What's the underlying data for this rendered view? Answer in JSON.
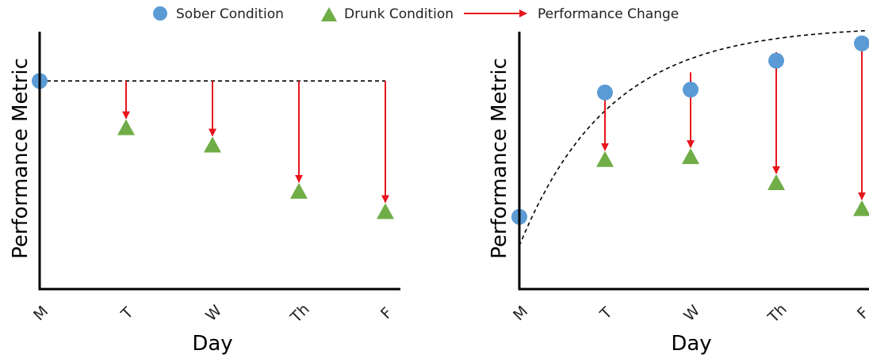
{
  "legend": {
    "sober_label": "Sober Condition",
    "drunk_label": "Drunk Condition",
    "change_label": "Performance Change"
  },
  "colors": {
    "sober": "#5b9bd5",
    "drunk": "#70ad47",
    "change": "#e8141c",
    "axis": "#000000",
    "guide": "#000000"
  },
  "chart_data": [
    {
      "type": "scatter",
      "xlabel": "Day",
      "ylabel": "Performance Metric",
      "categories": [
        "M",
        "T",
        "W",
        "Th",
        "F"
      ],
      "ylim": [
        0,
        100
      ],
      "guide": "flat",
      "series": [
        {
          "name": "Sober Condition",
          "values": [
            72,
            null,
            null,
            null,
            null
          ]
        },
        {
          "name": "Drunk Condition",
          "values": [
            null,
            56,
            50,
            34,
            27
          ]
        }
      ],
      "changes": [
        {
          "x": "T",
          "from": 72,
          "to": 56
        },
        {
          "x": "W",
          "from": 72,
          "to": 50
        },
        {
          "x": "Th",
          "from": 72,
          "to": 34
        },
        {
          "x": "F",
          "from": 72,
          "to": 27
        }
      ]
    },
    {
      "type": "scatter",
      "xlabel": "Day",
      "ylabel": "Performance Metric",
      "categories": [
        "M",
        "T",
        "W",
        "Th",
        "F"
      ],
      "ylim": [
        0,
        100
      ],
      "guide": "saturating",
      "series": [
        {
          "name": "Sober Condition",
          "values": [
            25,
            68,
            69,
            79,
            85
          ]
        },
        {
          "name": "Drunk Condition",
          "values": [
            null,
            45,
            46,
            37,
            28
          ]
        }
      ],
      "changes": [
        {
          "x": "T",
          "from": 68,
          "to": 45
        },
        {
          "x": "W",
          "from": 75,
          "to": 46
        },
        {
          "x": "Th",
          "from": 82,
          "to": 37
        },
        {
          "x": "F",
          "from": 85,
          "to": 28
        }
      ]
    }
  ]
}
